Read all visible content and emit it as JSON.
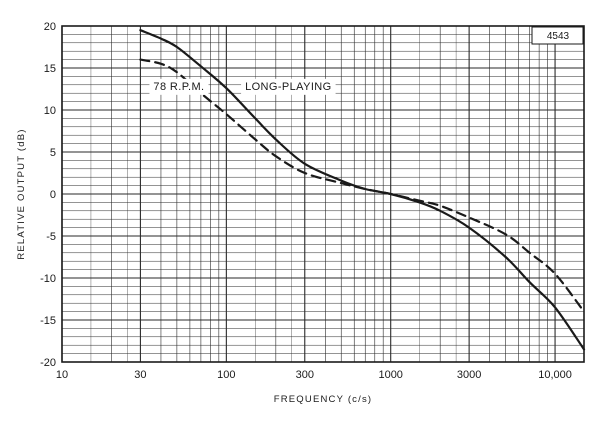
{
  "chart_data": {
    "type": "line",
    "title": "",
    "xlabel": "FREQUENCY (c/s)",
    "ylabel": "RELATIVE OUTPUT (dB)",
    "corner_label": "4543",
    "x_scale": "log",
    "xlim": [
      10,
      15000
    ],
    "ylim": [
      -20,
      20
    ],
    "grid": true,
    "x_ticks": [
      10,
      30,
      100,
      300,
      1000,
      3000,
      10000
    ],
    "x_tick_labels": [
      "10",
      "30",
      "100",
      "300",
      "1000",
      "3000",
      "10,000"
    ],
    "y_ticks": [
      20,
      15,
      10,
      5,
      0,
      -5,
      -10,
      -15,
      -20
    ],
    "y_tick_labels": [
      "20",
      "15",
      "10",
      "5",
      "0",
      "-5",
      "-10",
      "-15",
      "-20"
    ],
    "series": [
      {
        "name": "LONG-PLAYING",
        "style": "solid",
        "color": "#1a1a1a",
        "x": [
          30,
          40,
          50,
          70,
          100,
          150,
          200,
          300,
          500,
          700,
          1000,
          1500,
          2000,
          3000,
          5000,
          7000,
          10000,
          15000
        ],
        "y": [
          19.5,
          18.5,
          17.5,
          15.2,
          12.6,
          9.0,
          6.5,
          3.6,
          1.6,
          0.6,
          0.0,
          -1.0,
          -2.0,
          -4.0,
          -7.5,
          -10.5,
          -13.5,
          -18.5
        ]
      },
      {
        "name": "78 R.P.M.",
        "style": "dashed",
        "color": "#1a1a1a",
        "x": [
          30,
          40,
          50,
          70,
          100,
          150,
          200,
          300,
          500,
          700,
          1000,
          1500,
          2000,
          3000,
          5000,
          7000,
          10000,
          15000
        ],
        "y": [
          16.0,
          15.5,
          14.5,
          12.0,
          9.5,
          6.5,
          4.5,
          2.5,
          1.3,
          0.6,
          0.0,
          -0.8,
          -1.4,
          -2.8,
          -4.8,
          -7.0,
          -9.5,
          -14.0
        ]
      }
    ]
  }
}
